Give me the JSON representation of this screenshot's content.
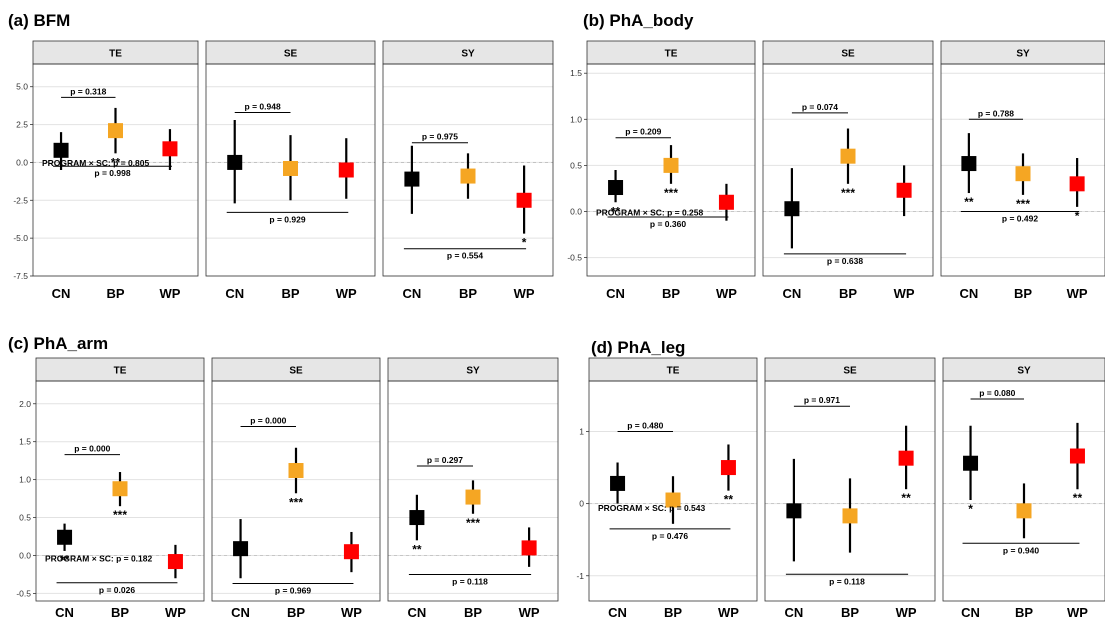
{
  "colors": {
    "CN": "#000000",
    "BP": "#F5A623",
    "WP": "#FF0000",
    "strip": "#E6E6E6",
    "grid": "#E2E2E2"
  },
  "chart_data": [
    {
      "type": "scatter",
      "title": "(a) BFM",
      "facets": [
        "TE",
        "SE",
        "SY"
      ],
      "categories": [
        "CN",
        "BP",
        "WP"
      ],
      "ylim": [
        -7.5,
        6.5
      ],
      "yticks": [
        -7.5,
        -5.0,
        -2.5,
        0.0,
        2.5,
        5.0
      ],
      "ytick_labels": [
        "-7.5",
        "-5.0",
        "-2.5",
        "0.0",
        "2.5",
        "5.0"
      ],
      "panels": [
        {
          "facet": "TE",
          "points": [
            {
              "x": "CN",
              "y": 0.8,
              "lo": -0.5,
              "hi": 2.0,
              "sig": ""
            },
            {
              "x": "BP",
              "y": 2.1,
              "lo": 0.6,
              "hi": 3.6,
              "sig": "**"
            },
            {
              "x": "WP",
              "y": 0.9,
              "lo": -0.5,
              "hi": 2.2,
              "sig": ""
            }
          ],
          "brackets": [
            {
              "from": "CN",
              "to": "BP",
              "y": 4.3,
              "label": "p = 0.318",
              "pos": "above"
            },
            {
              "from": "CN",
              "to": "WP",
              "y": -0.25,
              "label": "p = 0.998",
              "pos": "below"
            }
          ],
          "annotation": {
            "text": "PROGRAM × SC: p = 0.805",
            "y": -0.05
          }
        },
        {
          "facet": "SE",
          "points": [
            {
              "x": "CN",
              "y": 0.0,
              "lo": -2.7,
              "hi": 2.8,
              "sig": ""
            },
            {
              "x": "BP",
              "y": -0.4,
              "lo": -2.5,
              "hi": 1.8,
              "sig": ""
            },
            {
              "x": "WP",
              "y": -0.5,
              "lo": -2.4,
              "hi": 1.6,
              "sig": ""
            }
          ],
          "brackets": [
            {
              "from": "CN",
              "to": "BP",
              "y": 3.3,
              "label": "p = 0.948",
              "pos": "above"
            },
            {
              "from": "CN",
              "to": "WP",
              "y": -3.3,
              "label": "p = 0.929",
              "pos": "below"
            }
          ]
        },
        {
          "facet": "SY",
          "points": [
            {
              "x": "CN",
              "y": -1.1,
              "lo": -3.4,
              "hi": 1.1,
              "sig": ""
            },
            {
              "x": "BP",
              "y": -0.9,
              "lo": -2.4,
              "hi": 0.6,
              "sig": ""
            },
            {
              "x": "WP",
              "y": -2.5,
              "lo": -4.7,
              "hi": -0.2,
              "sig": "*"
            }
          ],
          "brackets": [
            {
              "from": "CN",
              "to": "BP",
              "y": 1.3,
              "label": "p = 0.975",
              "pos": "above"
            },
            {
              "from": "CN",
              "to": "WP",
              "y": -5.7,
              "label": "p = 0.554",
              "pos": "below"
            }
          ]
        }
      ]
    },
    {
      "type": "scatter",
      "title": "(b) PhA_body",
      "facets": [
        "TE",
        "SE",
        "SY"
      ],
      "categories": [
        "CN",
        "BP",
        "WP"
      ],
      "ylim": [
        -0.7,
        1.6
      ],
      "yticks": [
        -0.5,
        0.0,
        0.5,
        1.0,
        1.5
      ],
      "ytick_labels": [
        "-0.5",
        "0.0",
        "0.5",
        "1.0",
        "1.5"
      ],
      "panels": [
        {
          "facet": "TE",
          "points": [
            {
              "x": "CN",
              "y": 0.26,
              "lo": 0.1,
              "hi": 0.45,
              "sig": "**"
            },
            {
              "x": "BP",
              "y": 0.5,
              "lo": 0.3,
              "hi": 0.72,
              "sig": "***"
            },
            {
              "x": "WP",
              "y": 0.1,
              "lo": -0.1,
              "hi": 0.3,
              "sig": ""
            }
          ],
          "brackets": [
            {
              "from": "CN",
              "to": "BP",
              "y": 0.8,
              "label": "p = 0.209",
              "pos": "above"
            },
            {
              "from": "CN",
              "to": "WP",
              "y": -0.06,
              "label": "p = 0.360",
              "pos": "below"
            }
          ],
          "annotation": {
            "text": "PROGRAM × SC: p = 0.258",
            "y": -0.01
          }
        },
        {
          "facet": "SE",
          "points": [
            {
              "x": "CN",
              "y": 0.03,
              "lo": -0.4,
              "hi": 0.47,
              "sig": ""
            },
            {
              "x": "BP",
              "y": 0.6,
              "lo": 0.3,
              "hi": 0.9,
              "sig": "***"
            },
            {
              "x": "WP",
              "y": 0.23,
              "lo": -0.05,
              "hi": 0.5,
              "sig": ""
            }
          ],
          "brackets": [
            {
              "from": "CN",
              "to": "BP",
              "y": 1.07,
              "label": "p = 0.074",
              "pos": "above"
            },
            {
              "from": "CN",
              "to": "WP",
              "y": -0.46,
              "label": "p = 0.638",
              "pos": "below"
            }
          ]
        },
        {
          "facet": "SY",
          "points": [
            {
              "x": "CN",
              "y": 0.52,
              "lo": 0.2,
              "hi": 0.85,
              "sig": "**"
            },
            {
              "x": "BP",
              "y": 0.41,
              "lo": 0.18,
              "hi": 0.63,
              "sig": "***"
            },
            {
              "x": "WP",
              "y": 0.3,
              "lo": 0.05,
              "hi": 0.58,
              "sig": "*"
            }
          ],
          "brackets": [
            {
              "from": "CN",
              "to": "BP",
              "y": 1.0,
              "label": "p = 0.788",
              "pos": "above"
            },
            {
              "from": "CN",
              "to": "WP",
              "y": 0.0,
              "label": "p = 0.492",
              "pos": "below"
            }
          ]
        }
      ]
    },
    {
      "type": "scatter",
      "title": "(c) PhA_arm",
      "facets": [
        "TE",
        "SE",
        "SY"
      ],
      "categories": [
        "CN",
        "BP",
        "WP"
      ],
      "ylim": [
        -0.6,
        2.3
      ],
      "yticks": [
        -0.5,
        0.0,
        0.5,
        1.0,
        1.5,
        2.0
      ],
      "ytick_labels": [
        "-0.5",
        "0.0",
        "0.5",
        "1.0",
        "1.5",
        "2.0"
      ],
      "panels": [
        {
          "facet": "TE",
          "points": [
            {
              "x": "CN",
              "y": 0.24,
              "lo": 0.06,
              "hi": 0.42,
              "sig": "**"
            },
            {
              "x": "BP",
              "y": 0.88,
              "lo": 0.65,
              "hi": 1.1,
              "sig": "***"
            },
            {
              "x": "WP",
              "y": -0.08,
              "lo": -0.3,
              "hi": 0.14,
              "sig": ""
            }
          ],
          "brackets": [
            {
              "from": "CN",
              "to": "BP",
              "y": 1.33,
              "label": "p = 0.000",
              "pos": "above"
            },
            {
              "from": "CN",
              "to": "WP",
              "y": -0.36,
              "label": "p = 0.026",
              "pos": "below"
            }
          ],
          "annotation": {
            "text": "PROGRAM × SC: p = 0.182",
            "y": -0.04
          }
        },
        {
          "facet": "SE",
          "points": [
            {
              "x": "CN",
              "y": 0.09,
              "lo": -0.3,
              "hi": 0.48,
              "sig": ""
            },
            {
              "x": "BP",
              "y": 1.12,
              "lo": 0.82,
              "hi": 1.42,
              "sig": "***"
            },
            {
              "x": "WP",
              "y": 0.05,
              "lo": -0.22,
              "hi": 0.31,
              "sig": ""
            }
          ],
          "brackets": [
            {
              "from": "CN",
              "to": "BP",
              "y": 1.7,
              "label": "p = 0.000",
              "pos": "above"
            },
            {
              "from": "CN",
              "to": "WP",
              "y": -0.37,
              "label": "p = 0.969",
              "pos": "below"
            }
          ]
        },
        {
          "facet": "SY",
          "points": [
            {
              "x": "CN",
              "y": 0.5,
              "lo": 0.2,
              "hi": 0.8,
              "sig": "**"
            },
            {
              "x": "BP",
              "y": 0.77,
              "lo": 0.55,
              "hi": 0.99,
              "sig": "***"
            },
            {
              "x": "WP",
              "y": 0.1,
              "lo": -0.15,
              "hi": 0.37,
              "sig": ""
            }
          ],
          "brackets": [
            {
              "from": "CN",
              "to": "BP",
              "y": 1.18,
              "label": "p = 0.297",
              "pos": "above"
            },
            {
              "from": "CN",
              "to": "WP",
              "y": -0.25,
              "label": "p = 0.118",
              "pos": "below"
            }
          ]
        }
      ]
    },
    {
      "type": "scatter",
      "title": "(d) PhA_leg",
      "facets": [
        "TE",
        "SE",
        "SY"
      ],
      "categories": [
        "CN",
        "BP",
        "WP"
      ],
      "ylim": [
        -1.35,
        1.7
      ],
      "yticks": [
        -1,
        0,
        1
      ],
      "ytick_labels": [
        "-1",
        "0",
        "1"
      ],
      "panels": [
        {
          "facet": "TE",
          "points": [
            {
              "x": "CN",
              "y": 0.28,
              "lo": 0.0,
              "hi": 0.57,
              "sig": ""
            },
            {
              "x": "BP",
              "y": 0.05,
              "lo": -0.28,
              "hi": 0.38,
              "sig": ""
            },
            {
              "x": "WP",
              "y": 0.5,
              "lo": 0.18,
              "hi": 0.82,
              "sig": "**"
            }
          ],
          "brackets": [
            {
              "from": "CN",
              "to": "BP",
              "y": 1.0,
              "label": "p = 0.480",
              "pos": "above"
            },
            {
              "from": "CN",
              "to": "WP",
              "y": -0.35,
              "label": "p = 0.476",
              "pos": "below"
            }
          ],
          "annotation": {
            "text": "PROGRAM × SC: p = 0.543",
            "y": -0.06
          }
        },
        {
          "facet": "SE",
          "points": [
            {
              "x": "CN",
              "y": -0.1,
              "lo": -0.8,
              "hi": 0.62,
              "sig": ""
            },
            {
              "x": "BP",
              "y": -0.17,
              "lo": -0.68,
              "hi": 0.35,
              "sig": ""
            },
            {
              "x": "WP",
              "y": 0.63,
              "lo": 0.2,
              "hi": 1.08,
              "sig": "**"
            }
          ],
          "brackets": [
            {
              "from": "CN",
              "to": "BP",
              "y": 1.35,
              "label": "p = 0.971",
              "pos": "above"
            },
            {
              "from": "CN",
              "to": "WP",
              "y": -0.98,
              "label": "p = 0.118",
              "pos": "below"
            }
          ]
        },
        {
          "facet": "SY",
          "points": [
            {
              "x": "CN",
              "y": 0.56,
              "lo": 0.05,
              "hi": 1.08,
              "sig": "*"
            },
            {
              "x": "BP",
              "y": -0.1,
              "lo": -0.48,
              "hi": 0.28,
              "sig": ""
            },
            {
              "x": "WP",
              "y": 0.66,
              "lo": 0.2,
              "hi": 1.12,
              "sig": "**"
            }
          ],
          "brackets": [
            {
              "from": "CN",
              "to": "BP",
              "y": 1.45,
              "label": "p = 0.080",
              "pos": "above"
            },
            {
              "from": "CN",
              "to": "WP",
              "y": -0.55,
              "label": "p = 0.940",
              "pos": "below"
            }
          ]
        }
      ]
    }
  ]
}
